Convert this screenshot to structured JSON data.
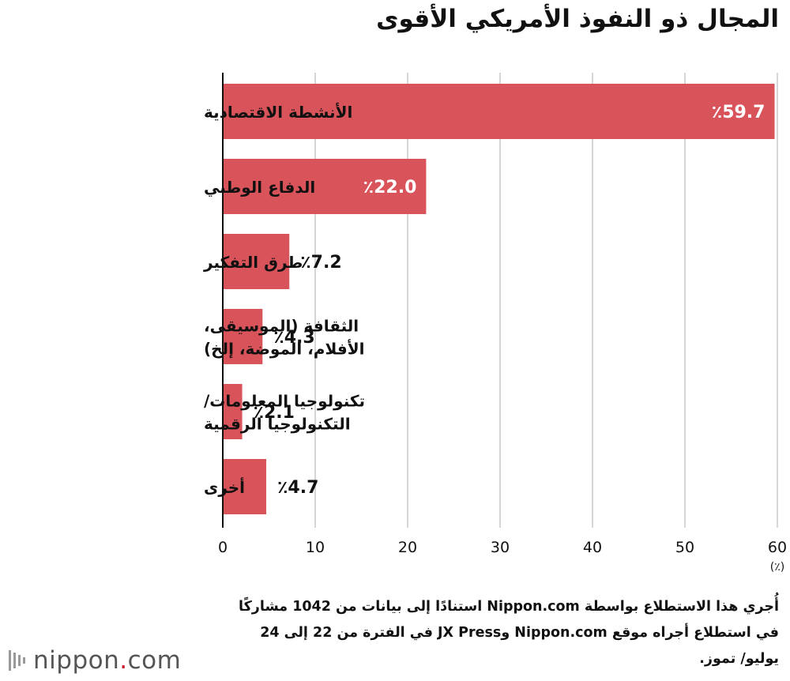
{
  "title": "المجال ذو النفوذ الأمريكي الأقوى",
  "chart_data": {
    "type": "bar",
    "orientation": "horizontal",
    "categories": [
      [
        "الأنشطة الاقتصادية"
      ],
      [
        "الدفاع الوطني"
      ],
      [
        "طرق التفكير"
      ],
      [
        "الثقافة (الموسيقى،",
        "الأفلام، الموضة، إلخ)"
      ],
      [
        "تكنولوجيا المعلومات/",
        "التكنولوجيا الرقمية"
      ],
      [
        "أخرى"
      ]
    ],
    "values": [
      59.7,
      22.0,
      7.2,
      4.3,
      2.1,
      4.7
    ],
    "value_labels": [
      "٪59.7",
      "٪22.0",
      "٪7.2",
      "٪4.3",
      "٪2.1",
      "٪4.7"
    ],
    "xlim": [
      0,
      60
    ],
    "xticks": [
      0,
      10,
      20,
      30,
      40,
      50,
      60
    ],
    "xunit": "(٪)",
    "grid": true,
    "bar_color": "#d9545a"
  },
  "footer": "أُجري هذا الاستطلاع بواسطة Nippon.com استنادًا إلى بيانات من 1042 مشاركًا في استطلاع أجراه موقع Nippon.com وJX Press في الفترة من 22 إلى 24 يوليو/ تموز.",
  "logo": {
    "name": "nippon",
    "dot": ".",
    "suffix": "com",
    "icon": "nippon-logo-icon",
    "accent_color": "#c8102e"
  }
}
